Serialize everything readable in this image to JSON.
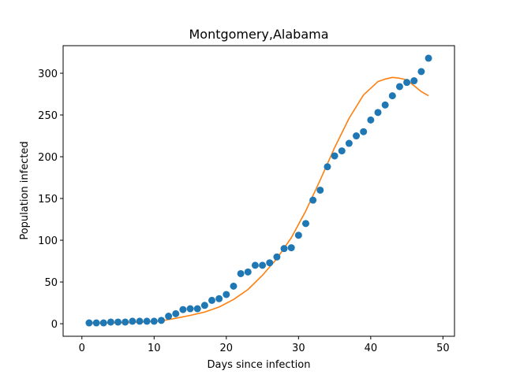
{
  "chart_data": {
    "type": "scatter",
    "title": "Montgomery,Alabama",
    "xlabel": "Days since infection",
    "ylabel": "Population infected",
    "xlim": [
      -2.6,
      51.6
    ],
    "ylim": [
      -15,
      333
    ],
    "x_ticks": [
      0,
      10,
      20,
      30,
      40,
      50
    ],
    "y_ticks": [
      0,
      50,
      100,
      150,
      200,
      250,
      300
    ],
    "grid": false,
    "series": [
      {
        "kind": "points",
        "color": "#1f77b4",
        "x": [
          1,
          2,
          3,
          4,
          5,
          6,
          7,
          8,
          9,
          10,
          11,
          12,
          13,
          14,
          15,
          16,
          17,
          18,
          19,
          20,
          21,
          22,
          23,
          24,
          25,
          26,
          27,
          28,
          29,
          30,
          31,
          32,
          33,
          34,
          35,
          36,
          37,
          38,
          39,
          40,
          41,
          42,
          43,
          44,
          45,
          46,
          47,
          48
        ],
        "values": [
          1,
          1,
          1,
          2,
          2,
          2,
          3,
          3,
          3,
          3,
          4,
          9,
          12,
          17,
          18,
          18,
          22,
          28,
          30,
          35,
          45,
          60,
          62,
          70,
          70,
          73,
          80,
          90,
          91,
          106,
          120,
          148,
          160,
          188,
          201,
          207,
          216,
          225,
          230,
          244,
          253,
          262,
          273,
          284,
          289,
          291,
          302,
          318
        ]
      },
      {
        "kind": "line",
        "color": "#ff7f0e",
        "x": [
          1,
          3,
          5,
          7,
          9,
          11,
          13,
          15,
          17,
          19,
          21,
          23,
          25,
          27,
          29,
          31,
          33,
          35,
          37,
          39,
          41,
          42,
          43,
          44,
          45,
          46,
          47,
          48
        ],
        "values": [
          0.5,
          0.8,
          1.0,
          1.5,
          2.2,
          3.5,
          6.5,
          10,
          14,
          20,
          29,
          41,
          58,
          78,
          103,
          135,
          172,
          211,
          246,
          274,
          290,
          293,
          295,
          294,
          292,
          285,
          278,
          273
        ]
      }
    ]
  }
}
